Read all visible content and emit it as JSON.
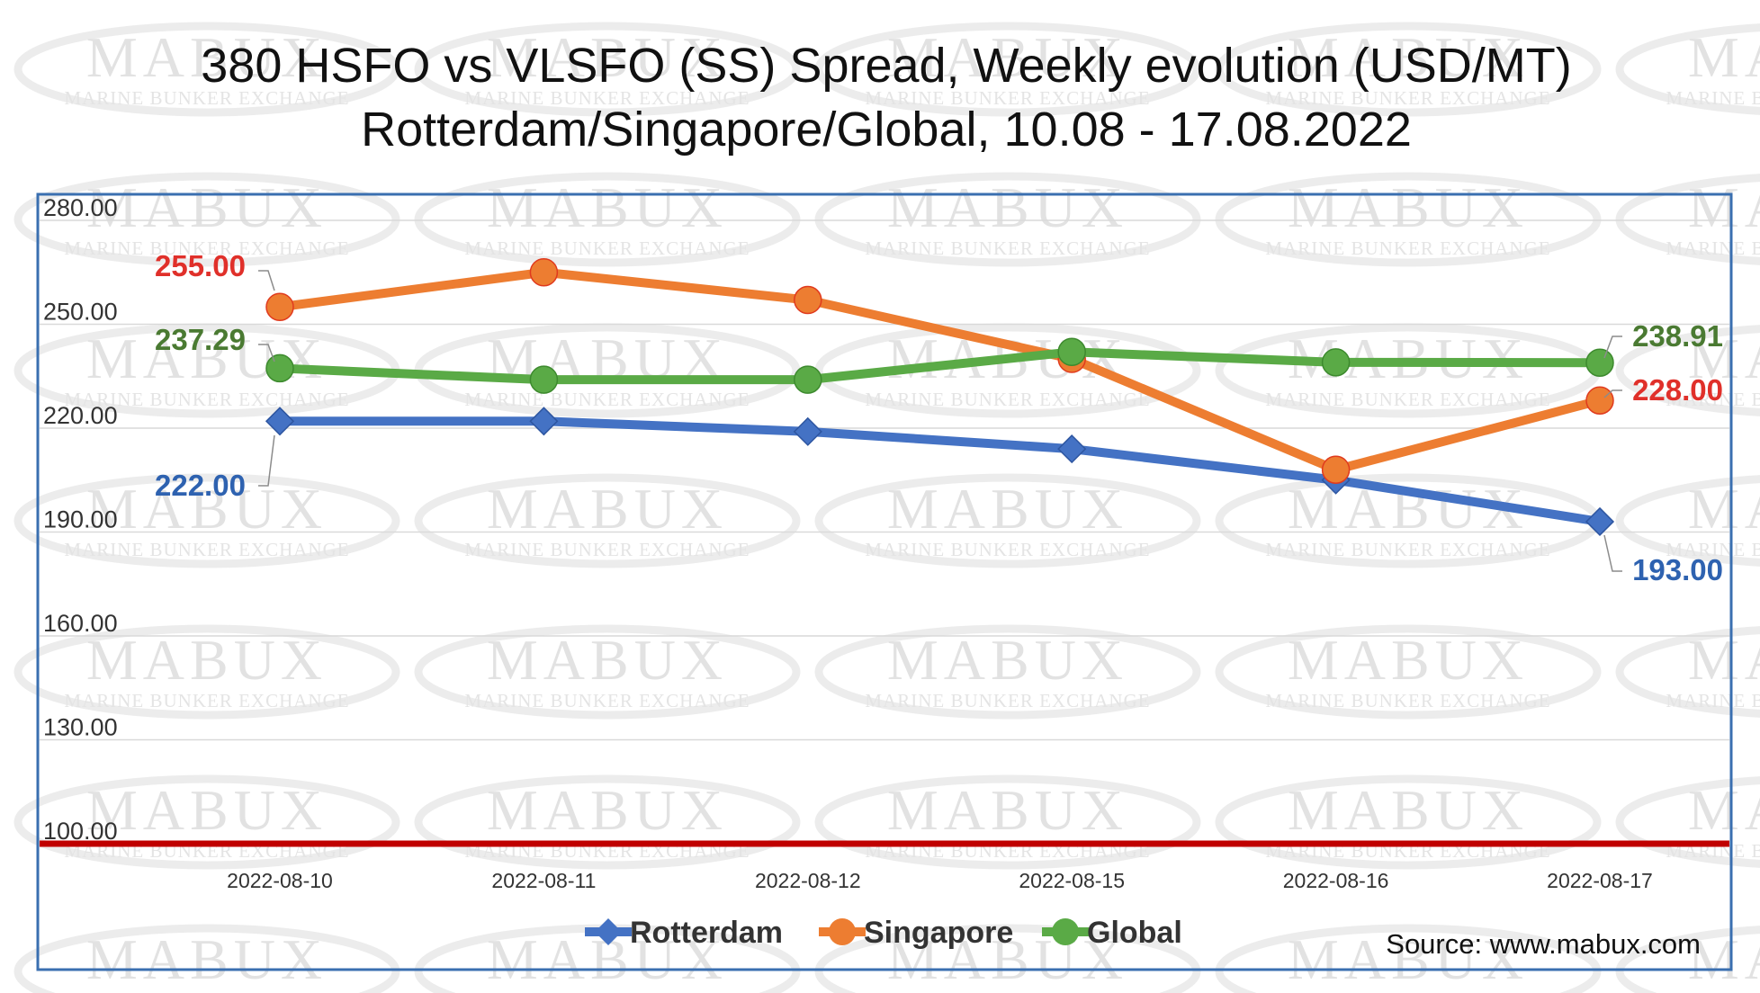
{
  "chart_data": {
    "type": "line",
    "title_line1": "380 HSFO vs VLSFO (SS) Spread, Weekly evolution (USD/MT)",
    "title_line2": "Rotterdam/Singapore/Global, 10.08 - 17.08.2022",
    "categories": [
      "2022-08-10",
      "2022-08-11",
      "2022-08-12",
      "2022-08-15",
      "2022-08-16",
      "2022-08-17"
    ],
    "y_ticks": [
      "100.00",
      "130.00",
      "160.00",
      "190.00",
      "220.00",
      "250.00",
      "280.00"
    ],
    "ylim": [
      100,
      280
    ],
    "reference_line": 100,
    "grid": true,
    "legend_position": "bottom",
    "series": [
      {
        "name": "Rotterdam",
        "values": [
          222,
          222,
          219,
          214,
          205,
          193
        ],
        "color": "#4472c4",
        "marker": "diamond"
      },
      {
        "name": "Singapore",
        "values": [
          255,
          265,
          257,
          240,
          208,
          228
        ],
        "color": "#ed7d31",
        "marker": "circle"
      },
      {
        "name": "Global",
        "values": [
          237.29,
          234,
          234,
          242,
          239,
          238.91
        ],
        "color": "#5aaa46",
        "marker": "circle"
      }
    ],
    "data_labels": [
      {
        "series": "Singapore",
        "index": 0,
        "text": "255.00",
        "color": "#e0302a"
      },
      {
        "series": "Global",
        "index": 0,
        "text": "237.29",
        "color": "#4a7a32"
      },
      {
        "series": "Rotterdam",
        "index": 0,
        "text": "222.00",
        "color": "#2e62b0"
      },
      {
        "series": "Global",
        "index": 5,
        "text": "238.91",
        "color": "#4a7a32"
      },
      {
        "series": "Singapore",
        "index": 5,
        "text": "228.00",
        "color": "#e0302a"
      },
      {
        "series": "Rotterdam",
        "index": 5,
        "text": "193.00",
        "color": "#2e62b0"
      }
    ],
    "source": "Source: www.mabux.com"
  },
  "watermark": {
    "brand": "MABUX",
    "tagline": "MARINE BUNKER EXCHANGE"
  },
  "colors": {
    "frame": "#3a6fb0",
    "grid": "#d9d9d9",
    "reference": "#c00000"
  }
}
